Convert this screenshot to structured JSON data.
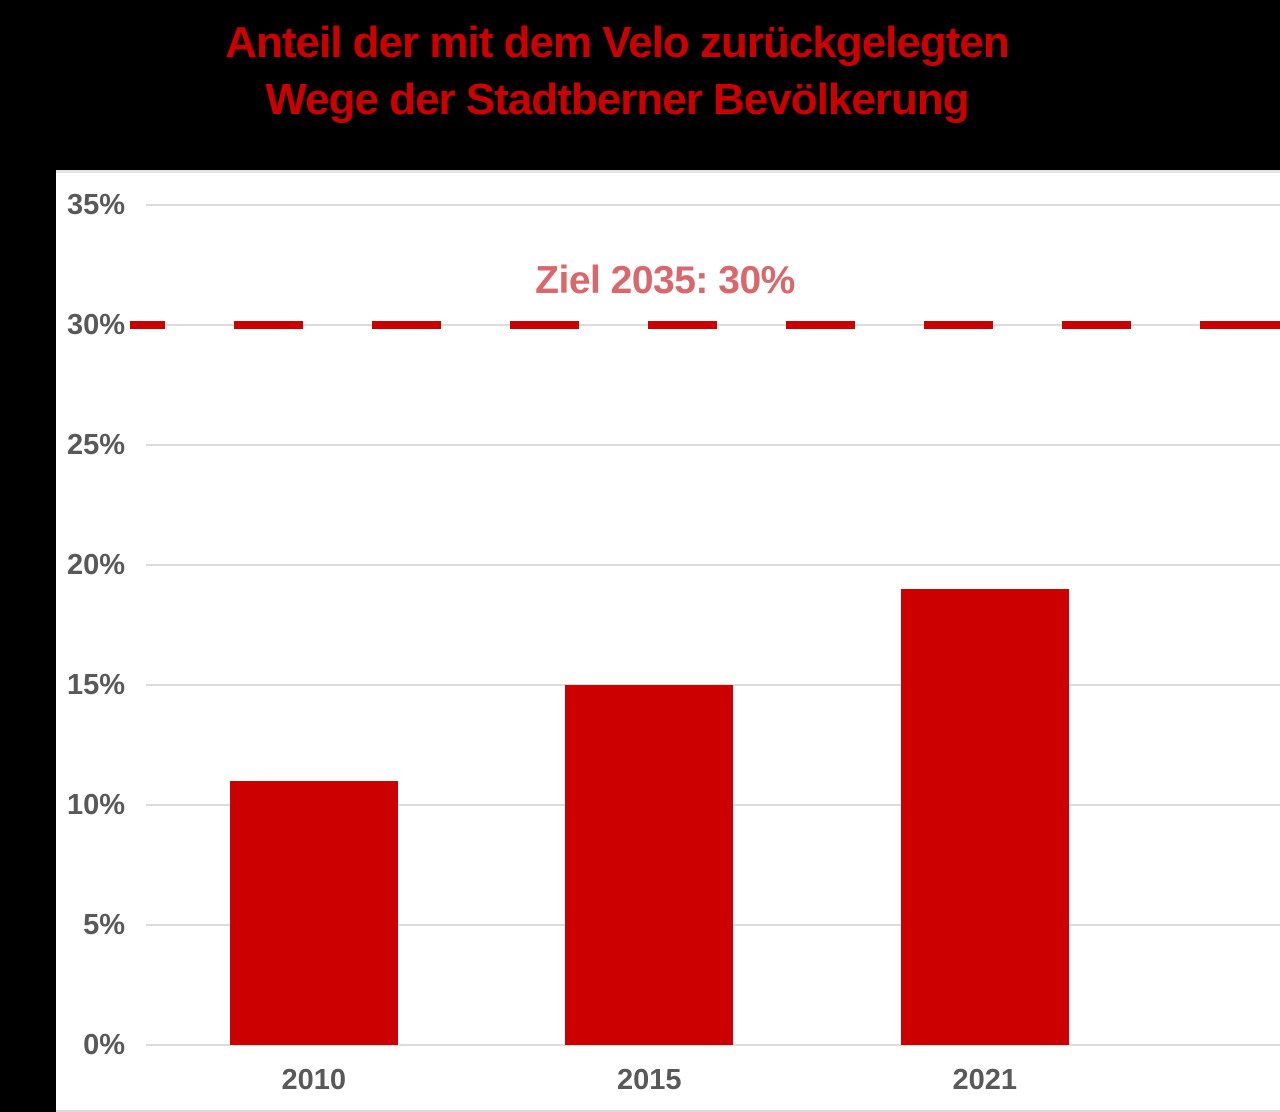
{
  "page": {
    "background_color": "#000000",
    "panel_color": "#FFFFFF"
  },
  "title": {
    "line1": "Anteil der mit dem Velo zurückgelegten",
    "line2": "Wege der Stadtberner Bevölkerung",
    "color": "#CC0000"
  },
  "chart_data": {
    "type": "bar",
    "title": "Anteil der mit dem Velo zurückgelegten Wege der Stadtberner Bevölkerung",
    "categories": [
      "2010",
      "2015",
      "2021"
    ],
    "values": [
      11,
      15,
      19
    ],
    "unit": "%",
    "ylim": [
      0,
      35
    ],
    "ytick_step": 5,
    "ytick_labels": [
      "0%",
      "5%",
      "10%",
      "15%",
      "20%",
      "25%",
      "30%",
      "35%"
    ],
    "grid": true,
    "legend": "none",
    "bar_color": "#CC0000",
    "axis_label_color": "#595959",
    "gridline_color": "#DCDCDC",
    "target_line": {
      "label": "Ziel 2035: 30%",
      "value": 30,
      "style": "dashed",
      "line_color": "#C90101",
      "label_color": "#D9686C"
    }
  }
}
